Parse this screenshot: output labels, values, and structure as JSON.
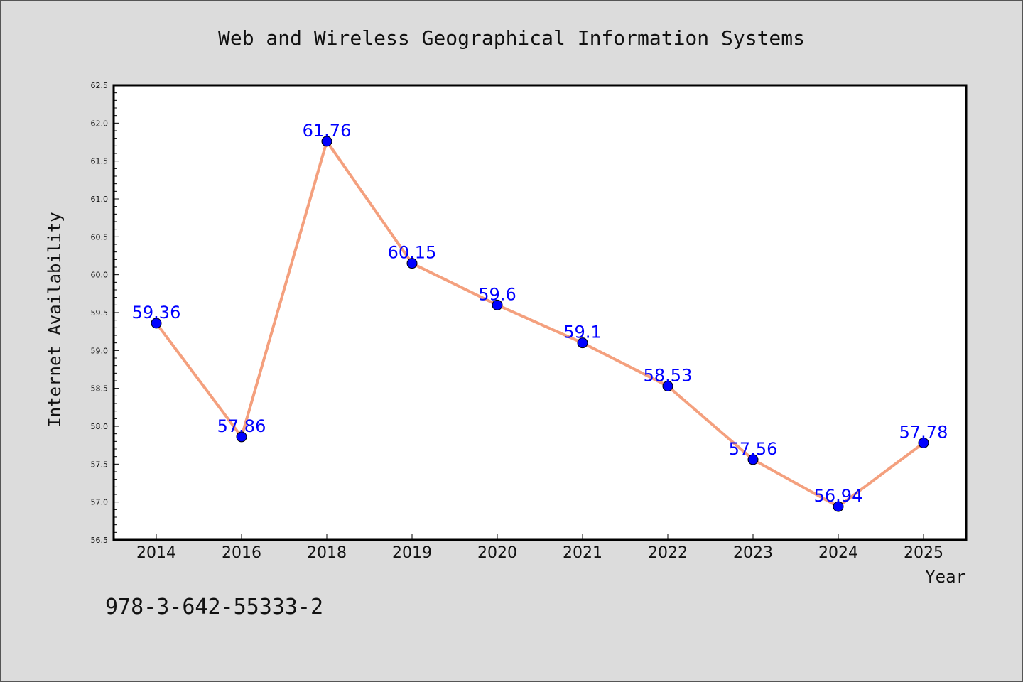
{
  "colors": {
    "background": "#dcdcdc",
    "plot_background": "#ffffff",
    "line": "#f4a07e",
    "marker": "#0000ff",
    "data_label": "#0000ff"
  },
  "footnote": "978-3-642-55333-2",
  "chart_data": {
    "type": "line",
    "title": "Web and Wireless Geographical Information Systems",
    "xlabel": "Year",
    "ylabel": "Internet Availability",
    "categories": [
      "2014",
      "2016",
      "2018",
      "2019",
      "2020",
      "2021",
      "2022",
      "2023",
      "2024",
      "2025"
    ],
    "series": [
      {
        "values": [
          59.36,
          57.86,
          61.76,
          60.15,
          59.6,
          59.1,
          58.53,
          57.56,
          56.94,
          57.78
        ],
        "labels": [
          "59.36",
          "57.86",
          "61.76",
          "60.15",
          "59.6",
          "59.1",
          "58.53",
          "57.56",
          "56.94",
          "57.78"
        ]
      }
    ],
    "ylim": [
      56.5,
      62.5
    ],
    "yticks": [
      "56.5",
      "57.0",
      "57.5",
      "58.0",
      "58.5",
      "59.0",
      "59.5",
      "60.0",
      "60.5",
      "61.0",
      "61.5",
      "62.0",
      "62.5"
    ],
    "grid": false,
    "legend": "none"
  }
}
